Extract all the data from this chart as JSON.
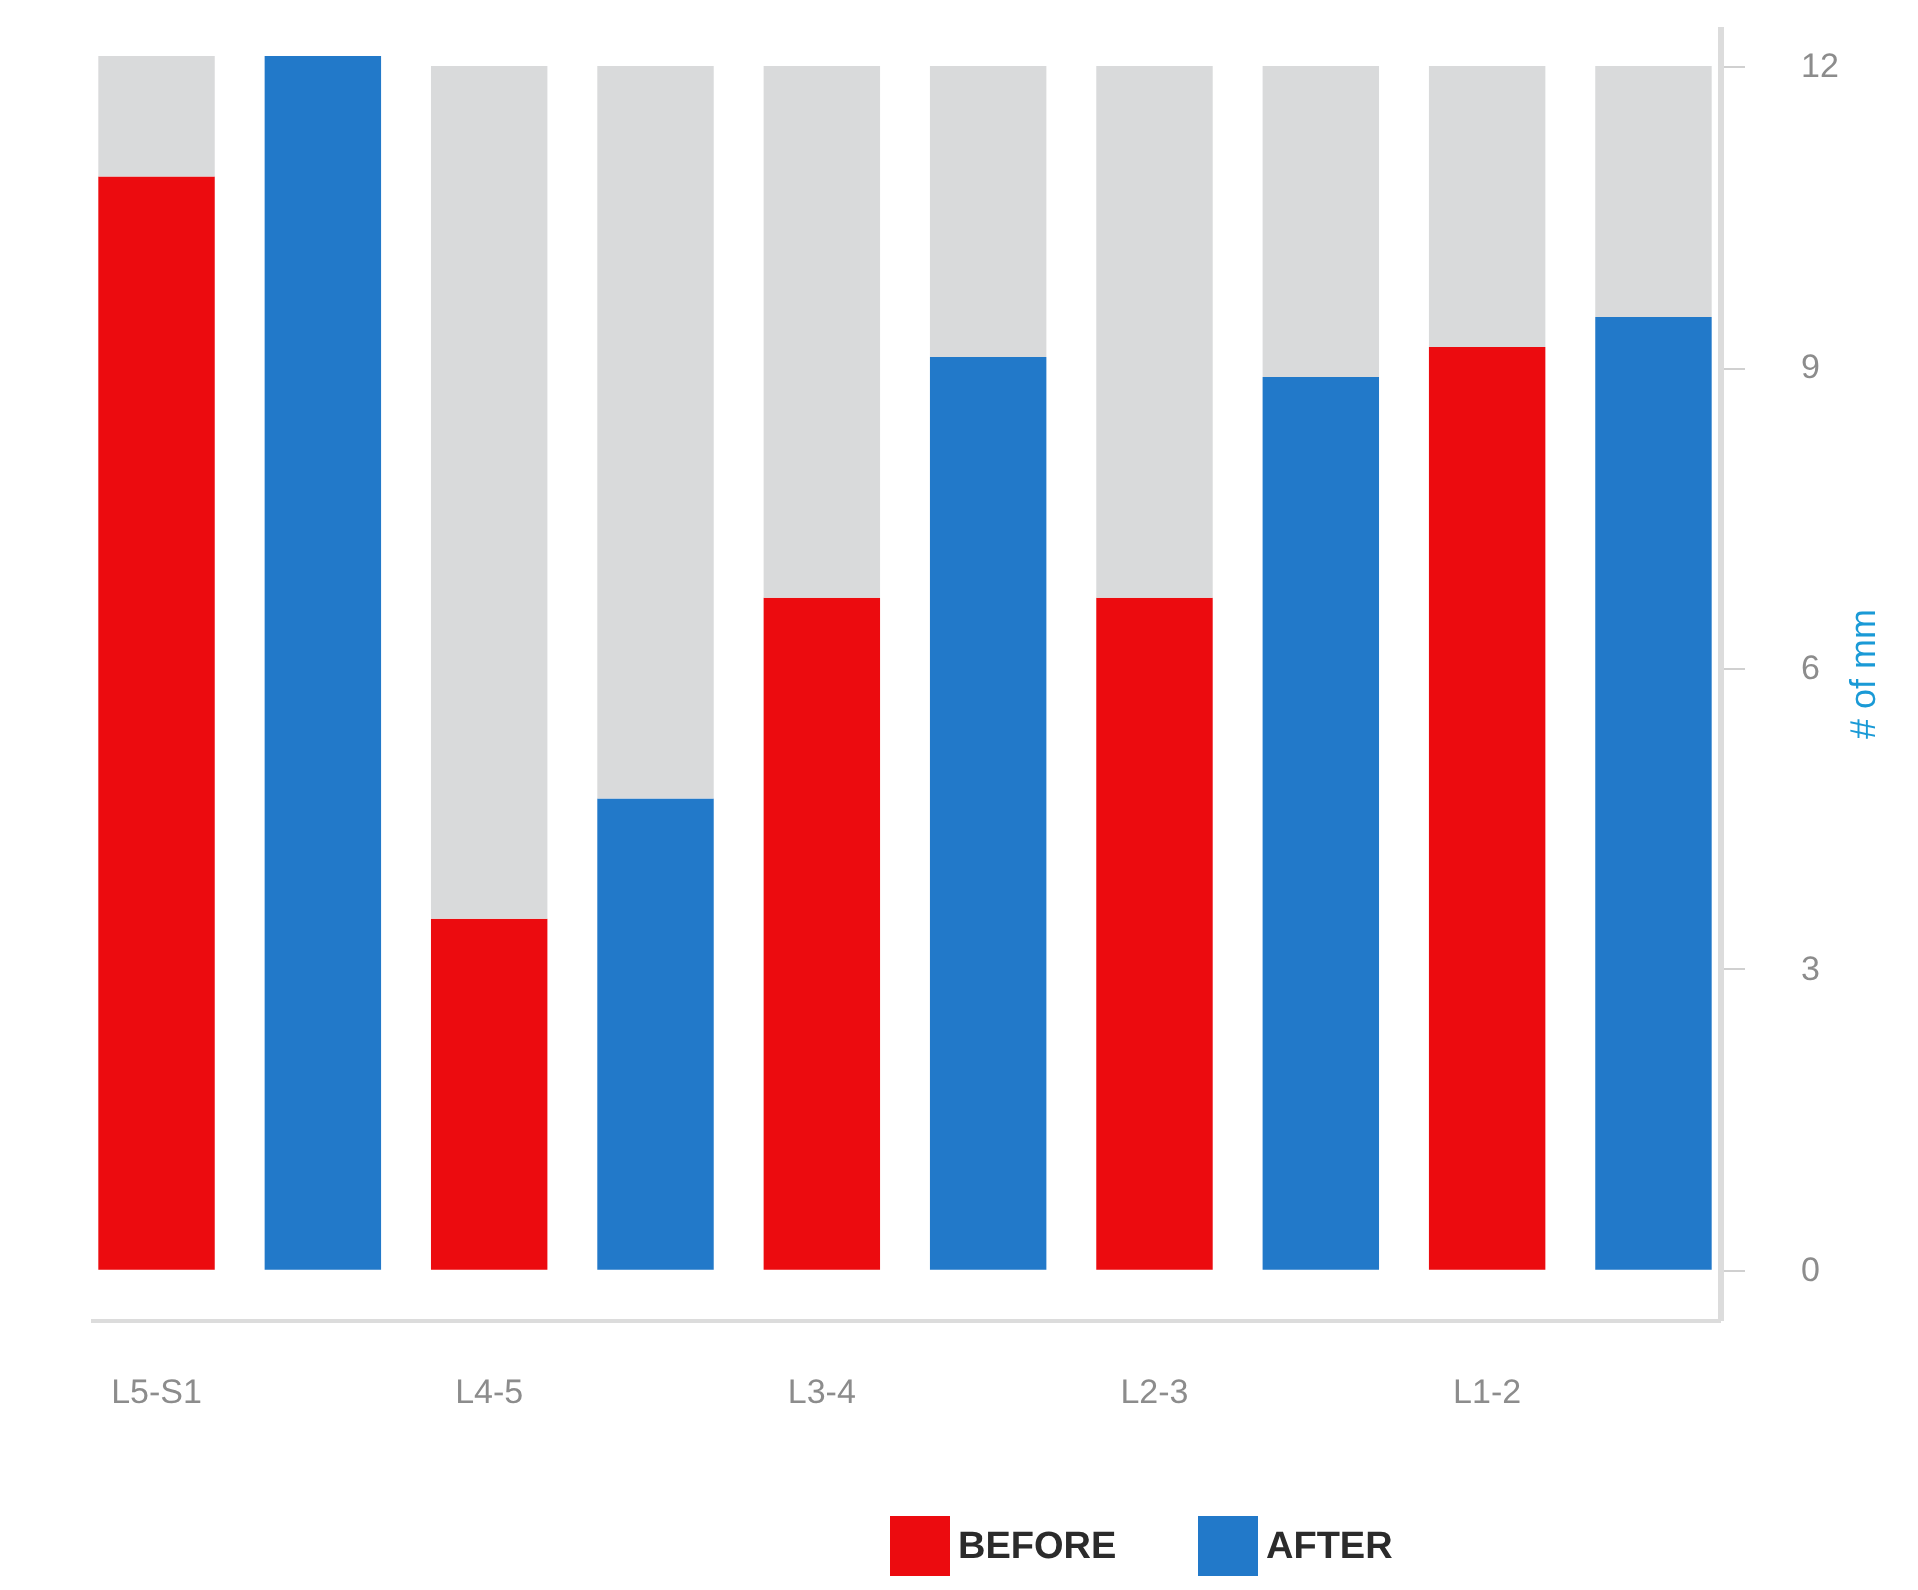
{
  "chart_data": {
    "type": "bar",
    "stacked": true,
    "categories": [
      "L5-S1",
      null,
      "L4-5",
      null,
      "L3-4",
      null,
      "L2-3",
      null,
      "L1-2",
      null
    ],
    "series": [
      {
        "name": "BEFORE",
        "color": "#ec0b0f",
        "values": [
          10.9,
          null,
          3.5,
          null,
          6.7,
          null,
          6.7,
          null,
          9.2,
          null
        ]
      },
      {
        "name": "AFTER",
        "color": "#2279c9",
        "values": [
          null,
          12.1,
          null,
          4.7,
          null,
          9.1,
          null,
          8.9,
          null,
          9.5
        ]
      },
      {
        "color": "#d9dadb",
        "values": [
          1.2,
          null,
          8.5,
          7.3,
          5.3,
          2.9,
          5.3,
          3.1,
          2.8,
          2.5
        ]
      }
    ],
    "ylabel": "# of mm",
    "ylim": [
      -0.5,
      12.4
    ],
    "yticks": [
      0,
      3,
      6,
      9,
      12
    ],
    "legend": "bottom right",
    "grid": false
  }
}
